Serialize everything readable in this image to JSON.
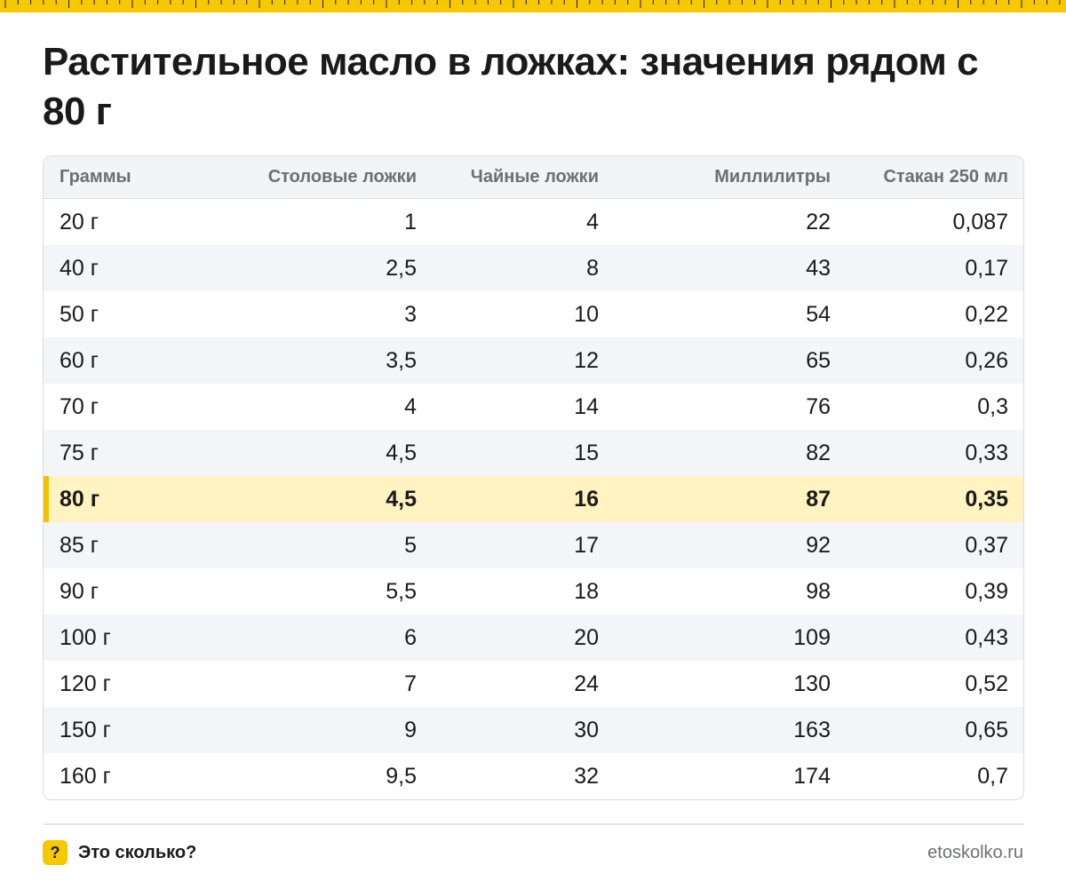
{
  "title": "Растительное масло в ложках: значения рядом с 80 г",
  "colors": {
    "accent": "#f5c800",
    "highlight_row": "#fff3c2",
    "header_bg": "#f2f4f7"
  },
  "table": {
    "headers": [
      "Граммы",
      "Столовые ложки",
      "Чайные ложки",
      "Миллилитры",
      "Стакан 250 мл"
    ],
    "highlighted_row": 6,
    "rows": [
      [
        "20 г",
        "1",
        "4",
        "22",
        "0,087"
      ],
      [
        "40 г",
        "2,5",
        "8",
        "43",
        "0,17"
      ],
      [
        "50 г",
        "3",
        "10",
        "54",
        "0,22"
      ],
      [
        "60 г",
        "3,5",
        "12",
        "65",
        "0,26"
      ],
      [
        "70 г",
        "4",
        "14",
        "76",
        "0,3"
      ],
      [
        "75 г",
        "4,5",
        "15",
        "82",
        "0,33"
      ],
      [
        "80 г",
        "4,5",
        "16",
        "87",
        "0,35"
      ],
      [
        "85 г",
        "5",
        "17",
        "92",
        "0,37"
      ],
      [
        "90 г",
        "5,5",
        "18",
        "98",
        "0,39"
      ],
      [
        "100 г",
        "6",
        "20",
        "109",
        "0,43"
      ],
      [
        "120 г",
        "7",
        "24",
        "130",
        "0,52"
      ],
      [
        "150 г",
        "9",
        "30",
        "163",
        "0,65"
      ],
      [
        "160 г",
        "9,5",
        "32",
        "174",
        "0,7"
      ]
    ]
  },
  "footer": {
    "badge": "?",
    "brand": "Это сколько?",
    "site": "etoskolko.ru"
  }
}
